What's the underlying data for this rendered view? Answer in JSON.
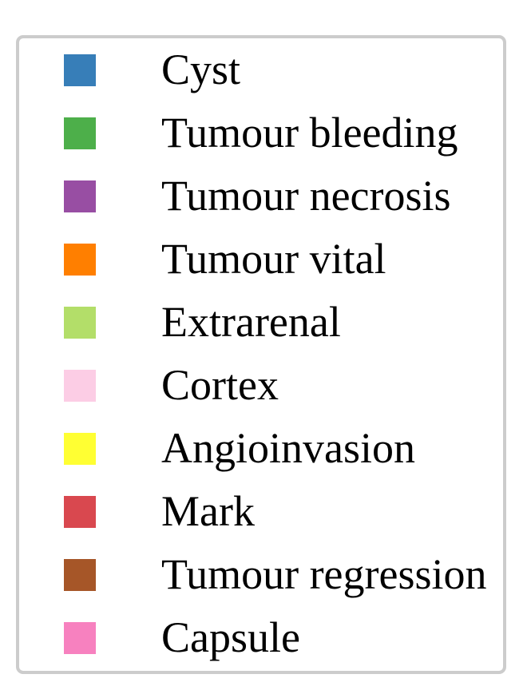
{
  "chart_data": {
    "type": "legend",
    "legend": [
      {
        "label": "Cyst",
        "color": "#377eb8"
      },
      {
        "label": "Tumour bleeding",
        "color": "#4daf4a"
      },
      {
        "label": "Tumour necrosis",
        "color": "#984ea3"
      },
      {
        "label": "Tumour vital",
        "color": "#ff7f00"
      },
      {
        "label": "Extrarenal",
        "color": "#b3de69"
      },
      {
        "label": "Cortex",
        "color": "#fccde5"
      },
      {
        "label": "Angioinvasion",
        "color": "#ffff33"
      },
      {
        "label": "Mark",
        "color": "#d9484f"
      },
      {
        "label": "Tumour regression",
        "color": "#a65628"
      },
      {
        "label": "Capsule",
        "color": "#f781bf"
      }
    ]
  }
}
